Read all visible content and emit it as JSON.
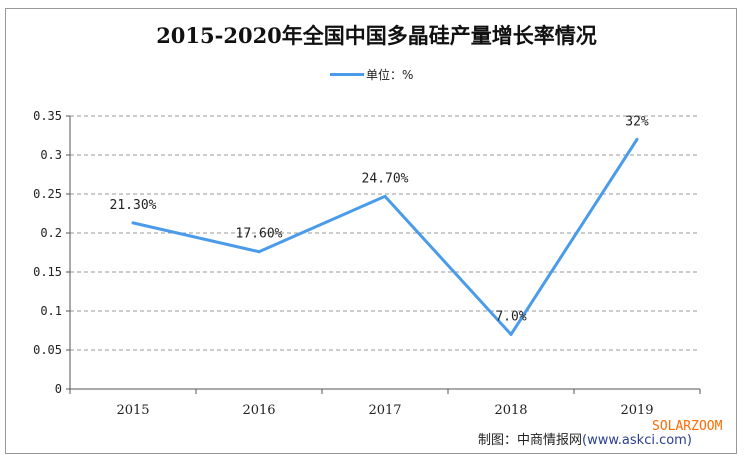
{
  "chart_data": {
    "type": "line",
    "title": "2015-2020年全国中国多晶硅产量增长率情况",
    "legend": {
      "label": "单位：%",
      "position": "top"
    },
    "categories": [
      "2015",
      "2016",
      "2017",
      "2018",
      "2019"
    ],
    "series": [
      {
        "name": "单位：%",
        "values": [
          0.213,
          0.176,
          0.247,
          0.07,
          0.32
        ],
        "color": "#4a9bea"
      }
    ],
    "data_labels": [
      "21.30%",
      "17.60%",
      "24.70%",
      "7.0%",
      "32%"
    ],
    "yticks": [
      "0",
      "0.05",
      "0.1",
      "0.15",
      "0.2",
      "0.25",
      "0.3",
      "0.35"
    ],
    "ylim": [
      0,
      0.35
    ],
    "grid": "horizontal dashed"
  },
  "footer": {
    "source": "制图：中商情报网",
    "url": "(www.askci.com)",
    "watermark": "SOLARZOOM"
  }
}
